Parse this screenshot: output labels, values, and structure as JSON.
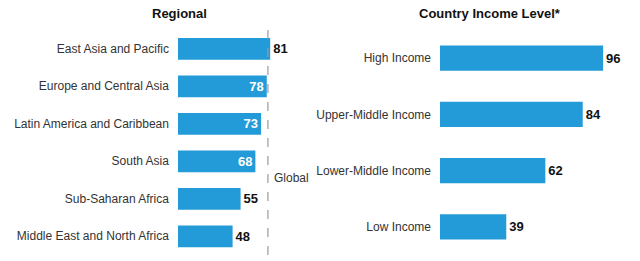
{
  "chart_data": [
    {
      "type": "bar",
      "title": "Regional",
      "orientation": "horizontal",
      "categories": [
        "East Asia and Pacific",
        "Europe and Central Asia",
        "Latin America and Caribbean",
        "South Asia",
        "Sub-Saharan Africa",
        "Middle East and North Africa"
      ],
      "values": [
        81,
        78,
        73,
        68,
        55,
        48
      ],
      "color": "#239bd8",
      "data_labels": true,
      "tick_labels": "y",
      "xlim": [
        0,
        100
      ],
      "reference_line": {
        "label": "Global",
        "value": 79
      }
    },
    {
      "type": "bar",
      "title": "Country Income Level*",
      "orientation": "horizontal",
      "categories": [
        "High Income",
        "Upper-Middle Income",
        "Lower-Middle Income",
        "Low Income"
      ],
      "values": [
        96,
        84,
        62,
        39
      ],
      "color": "#239bd8",
      "data_labels": true,
      "tick_labels": "y",
      "xlim": [
        0,
        100
      ]
    }
  ]
}
